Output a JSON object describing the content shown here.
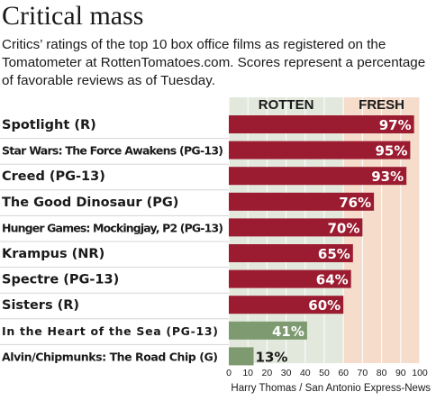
{
  "header": {
    "title": "Critical mass",
    "subtitle": "Critics’ ratings of the top 10 box office films as registered on the Tomatometer at RottenTomatoes.com. Scores represent a percentage of favorable reviews as of Tuesday."
  },
  "credit": "Harry Thomas / San Antonio Express-News",
  "colors": {
    "fresh_bar": "#9b1b30",
    "rotten_bar": "#7e9a70",
    "rotten_zone": "#e3e8dd",
    "fresh_zone": "#f5dccb",
    "grid": "#ffffff"
  },
  "chart_data": {
    "type": "bar",
    "orientation": "horizontal",
    "zones": [
      {
        "label": "ROTTEN",
        "from": 0,
        "to": 60
      },
      {
        "label": "FRESH",
        "from": 60,
        "to": 100
      }
    ],
    "categories": [
      "Spotlight (R)",
      "Star Wars: The Force Awakens (PG-13)",
      "Creed (PG-13)",
      "The Good Dinosaur (PG)",
      "Hunger Games: Mockingjay, P2 (PG-13)",
      "Krampus (NR)",
      "Spectre (PG-13)",
      "Sisters (R)",
      "In the Heart of the Sea (PG-13)",
      "Alvin/Chipmunks: The Road Chip (G)"
    ],
    "values": [
      97,
      95,
      93,
      76,
      70,
      65,
      64,
      60,
      41,
      13
    ],
    "value_labels": [
      "97%",
      "95%",
      "93%",
      "76%",
      "70%",
      "65%",
      "64%",
      "60%",
      "41%",
      "13%"
    ],
    "xlim": [
      0,
      100
    ],
    "xticks": [
      0,
      10,
      20,
      30,
      40,
      50,
      60,
      70,
      80,
      90,
      100
    ],
    "xtick_labels": [
      "0",
      "10",
      "20",
      "30",
      "40",
      "50",
      "60",
      "70",
      "80",
      "90",
      "100"
    ],
    "fresh_threshold": 60,
    "grid": true
  }
}
